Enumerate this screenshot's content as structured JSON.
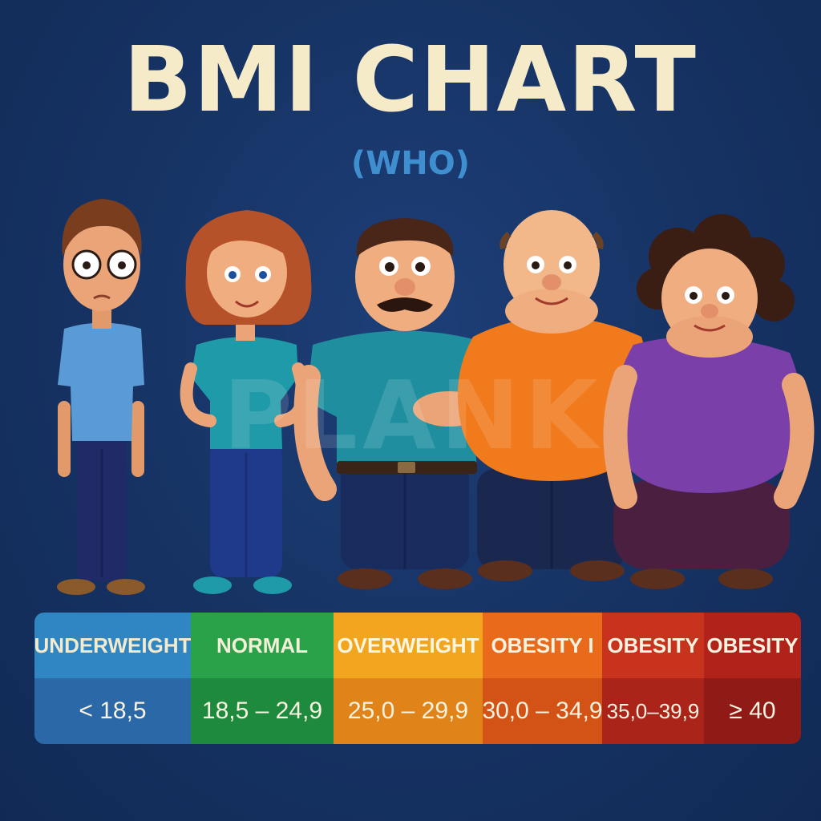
{
  "title": "BMI CHART",
  "subtitle": "(WHO)",
  "watermark": "PLANK",
  "categories": [
    {
      "label": "UNDERWEIGHT",
      "range": "< 18,5",
      "color": "#2f86c3"
    },
    {
      "label": "NORMAL",
      "range": "18,5 – 24,9",
      "color": "#2aa24a"
    },
    {
      "label": "OVERWEIGHT",
      "range": "25,0 – 29,9",
      "color": "#f2a51e"
    },
    {
      "label": "OBESITY I",
      "range": "30,0 – 34,9",
      "color": "#ea6a1c"
    },
    {
      "label": "OBESITY",
      "range": "35,0–39,9",
      "color": "#c8331d"
    },
    {
      "label": "OBESITY",
      "range": "≥ 40",
      "color": "#b0221a"
    }
  ],
  "figures": [
    {
      "name": "thin-man-with-glasses",
      "shirt_color": "#5b9bd5"
    },
    {
      "name": "woman-normal",
      "shirt_color": "#1f9aa8"
    },
    {
      "name": "man-with-mustache",
      "shirt_color": "#1f8fa0"
    },
    {
      "name": "bald-man",
      "shirt_color": "#f07a1c"
    },
    {
      "name": "curly-hair-woman",
      "shirt_color": "#7a3fa8"
    }
  ]
}
